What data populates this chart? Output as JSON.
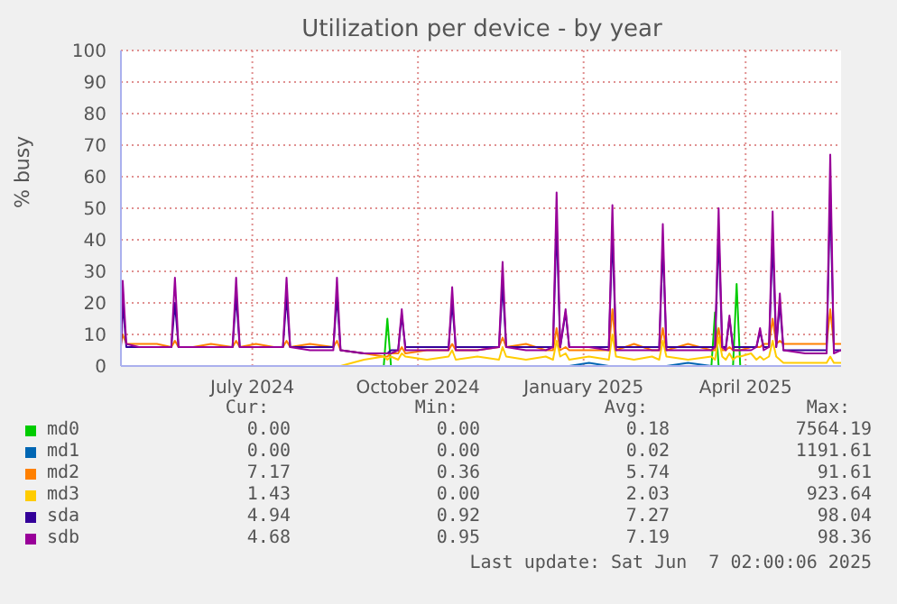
{
  "chart_data": {
    "type": "line",
    "title": "Utilization per device - by year",
    "ylabel": "% busy",
    "x": [
      "2024-05-03",
      "2024-05-04",
      "2024-05-06",
      "2024-05-13",
      "2024-05-23",
      "2024-05-31",
      "2024-06-02",
      "2024-06-04",
      "2024-06-12",
      "2024-06-22",
      "2024-07-04",
      "2024-07-06",
      "2024-07-08",
      "2024-07-17",
      "2024-07-27",
      "2024-08-01",
      "2024-08-03",
      "2024-08-05",
      "2024-08-16",
      "2024-08-29",
      "2024-08-31",
      "2024-09-02",
      "2024-09-15",
      "2024-09-26",
      "2024-09-28",
      "2024-09-30",
      "2024-10-04",
      "2024-10-06",
      "2024-10-08",
      "2024-10-20",
      "2024-11-01",
      "2024-11-03",
      "2024-11-05",
      "2024-11-17",
      "2024-11-29",
      "2024-12-01",
      "2024-12-03",
      "2024-12-14",
      "2024-12-25",
      "2024-12-29",
      "2024-12-31",
      "2025-01-02",
      "2025-01-05",
      "2025-01-07",
      "2025-01-18",
      "2025-01-29",
      "2025-01-31",
      "2025-02-02",
      "2025-02-12",
      "2025-02-22",
      "2025-02-26",
      "2025-02-28",
      "2025-03-02",
      "2025-03-14",
      "2025-03-27",
      "2025-03-29",
      "2025-03-31",
      "2025-04-02",
      "2025-04-04",
      "2025-04-06",
      "2025-04-08",
      "2025-04-10",
      "2025-04-12",
      "2025-04-18",
      "2025-04-21",
      "2025-04-23",
      "2025-04-25",
      "2025-04-28",
      "2025-04-30",
      "2025-05-02",
      "2025-05-04",
      "2025-05-06",
      "2025-05-18",
      "2025-05-30",
      "2025-06-01",
      "2025-06-03",
      "2025-06-07"
    ],
    "series": [
      {
        "name": "md0",
        "color": "#00cc00",
        "values": [
          null,
          null,
          null,
          null,
          null,
          null,
          null,
          null,
          null,
          null,
          null,
          null,
          null,
          null,
          null,
          null,
          null,
          null,
          null,
          null,
          null,
          null,
          null,
          0,
          15,
          0,
          null,
          null,
          null,
          null,
          null,
          null,
          null,
          null,
          null,
          null,
          null,
          null,
          null,
          null,
          null,
          null,
          null,
          null,
          null,
          null,
          null,
          null,
          null,
          null,
          null,
          null,
          null,
          null,
          0,
          17,
          0,
          null,
          null,
          null,
          0,
          26,
          0,
          null,
          null,
          null,
          null,
          null,
          null,
          null,
          null,
          null,
          null,
          null,
          null,
          null,
          null
        ]
      },
      {
        "name": "md1",
        "color": "#0066b3",
        "values": [
          null,
          null,
          null,
          null,
          null,
          null,
          null,
          null,
          null,
          null,
          null,
          null,
          null,
          null,
          null,
          null,
          null,
          null,
          null,
          null,
          null,
          null,
          null,
          null,
          null,
          null,
          null,
          null,
          null,
          null,
          null,
          null,
          null,
          null,
          null,
          null,
          null,
          null,
          null,
          null,
          null,
          null,
          null,
          0,
          1,
          0,
          null,
          null,
          null,
          null,
          null,
          null,
          0,
          1,
          0,
          null,
          null,
          null,
          null,
          null,
          null,
          null,
          null,
          null,
          null,
          null,
          null,
          null,
          null,
          null,
          null,
          null,
          null,
          null,
          null,
          null,
          null
        ]
      },
      {
        "name": "md2",
        "color": "#ff8000",
        "values": [
          7,
          10,
          7,
          7,
          7,
          6,
          8,
          6,
          6,
          7,
          6,
          8,
          6,
          7,
          6,
          6,
          8,
          6,
          7,
          6,
          8,
          5,
          4,
          3,
          3,
          4,
          4,
          6,
          4,
          5,
          5,
          7,
          5,
          5,
          6,
          9,
          6,
          7,
          5,
          5,
          12,
          5,
          6,
          5,
          5,
          5,
          18,
          5,
          7,
          5,
          5,
          12,
          5,
          7,
          5,
          5,
          12,
          5,
          5,
          6,
          5,
          5,
          5,
          6,
          6,
          6,
          7,
          7,
          15,
          7,
          8,
          7,
          7,
          7,
          18,
          7,
          7
        ]
      },
      {
        "name": "md3",
        "color": "#ffcc00",
        "values": [
          null,
          null,
          null,
          null,
          null,
          null,
          null,
          null,
          null,
          null,
          null,
          null,
          null,
          null,
          null,
          null,
          null,
          null,
          null,
          null,
          null,
          0,
          2,
          3,
          2,
          3,
          2,
          4,
          3,
          2,
          3,
          5,
          2,
          3,
          2,
          6,
          3,
          2,
          3,
          2,
          8,
          3,
          4,
          2,
          3,
          2,
          10,
          3,
          2,
          3,
          2,
          8,
          3,
          2,
          3,
          2,
          9,
          3,
          2,
          4,
          2,
          3,
          3,
          4,
          2,
          3,
          2,
          3,
          8,
          3,
          2,
          1,
          1,
          1,
          3,
          1,
          1
        ]
      },
      {
        "name": "sda",
        "color": "#330099",
        "values": [
          6,
          20,
          6,
          6,
          6,
          6,
          20,
          6,
          6,
          6,
          6,
          22,
          6,
          6,
          6,
          6,
          22,
          6,
          6,
          6,
          22,
          5,
          4,
          4,
          4,
          5,
          5,
          16,
          6,
          6,
          6,
          20,
          6,
          6,
          6,
          26,
          6,
          6,
          6,
          6,
          45,
          6,
          17,
          6,
          6,
          6,
          42,
          6,
          6,
          6,
          6,
          38,
          6,
          6,
          6,
          6,
          42,
          6,
          6,
          15,
          6,
          6,
          6,
          6,
          6,
          11,
          6,
          6,
          40,
          6,
          20,
          5,
          5,
          5,
          55,
          5,
          5
        ]
      },
      {
        "name": "sdb",
        "color": "#990099",
        "values": [
          6,
          27,
          7,
          6,
          6,
          6,
          28,
          6,
          6,
          6,
          6,
          28,
          6,
          6,
          6,
          6,
          28,
          6,
          5,
          5,
          28,
          5,
          4,
          4,
          4,
          4,
          5,
          18,
          5,
          5,
          5,
          25,
          5,
          5,
          6,
          33,
          6,
          5,
          5,
          6,
          55,
          6,
          18,
          6,
          6,
          5,
          51,
          5,
          5,
          5,
          5,
          45,
          5,
          5,
          5,
          6,
          50,
          6,
          5,
          16,
          5,
          5,
          5,
          5,
          6,
          12,
          5,
          6,
          49,
          6,
          23,
          5,
          4,
          4,
          67,
          4,
          5
        ]
      }
    ],
    "xlim": [
      "2024-05-03",
      "2025-06-07"
    ],
    "xticks": [
      {
        "value": "2024-07-15",
        "label": "July 2024"
      },
      {
        "value": "2024-10-15",
        "label": "October 2024"
      },
      {
        "value": "2025-01-15",
        "label": "January 2025"
      },
      {
        "value": "2025-04-15",
        "label": "April 2025"
      }
    ],
    "ylim": [
      0,
      100
    ],
    "yticks": [
      0,
      10,
      20,
      30,
      40,
      50,
      60,
      70,
      80,
      90,
      100
    ],
    "grid": true,
    "legend": "bottom",
    "annotations": [
      "Cur:",
      "Min:",
      "Avg:",
      "Max:",
      "0.00",
      "0.00",
      "0.18",
      "7564.19",
      "0.00",
      "0.00",
      "0.02",
      "1191.61",
      "7.17",
      "0.36",
      "5.74",
      "91.61",
      "1.43",
      "0.00",
      "2.03",
      "923.64",
      "4.94",
      "0.92",
      "7.27",
      "98.04",
      "4.68",
      "0.95",
      "7.19",
      "98.36",
      "Last update: Sat Jun  7 02:00:06 2025"
    ]
  }
}
